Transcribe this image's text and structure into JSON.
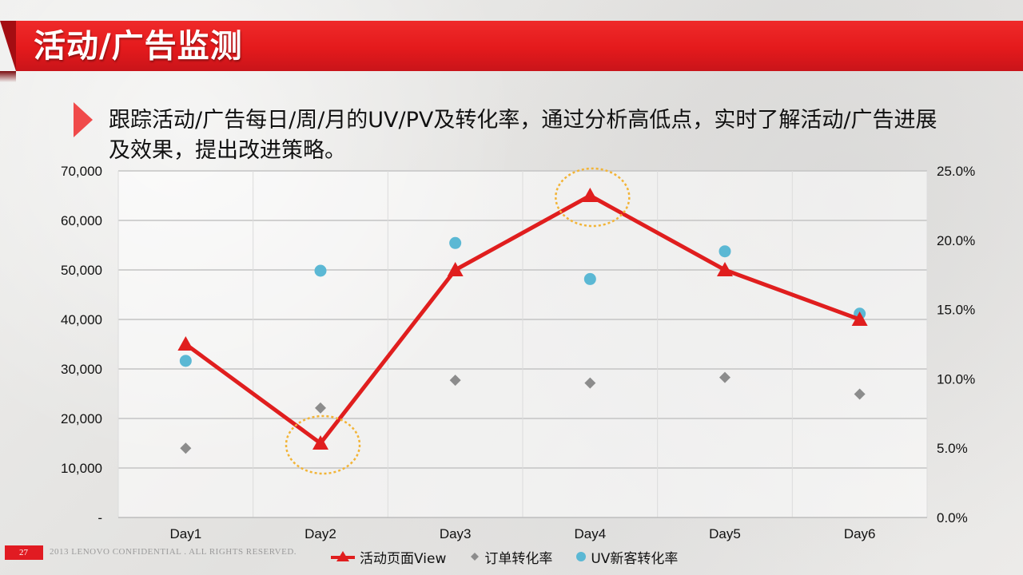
{
  "header": {
    "title": "活动/广告监测"
  },
  "bullet": {
    "text": "跟踪活动/广告每日/周/月的UV/PV及转化率，通过分析高低点，实时了解活动/广告进展及效果，提出改进策略。"
  },
  "footer": {
    "page_number": "27",
    "confidential": "2013 LENOVO CONFIDENTIAL . ALL RIGHTS RESERVED."
  },
  "colors": {
    "brand_red": "#e41a1c",
    "view_series": "#e01e1e",
    "order_series": "#8c8c8c",
    "uv_series": "#5bb8d4",
    "highlight_circle": "#f2b437"
  },
  "chart_data": {
    "type": "line",
    "categories": [
      "Day1",
      "Day2",
      "Day3",
      "Day4",
      "Day5",
      "Day6"
    ],
    "y_left": {
      "range": [
        0,
        70000
      ],
      "ticks": [
        "-",
        "10,000",
        "20,000",
        "30,000",
        "40,000",
        "50,000",
        "60,000",
        "70,000"
      ]
    },
    "y_right": {
      "range": [
        0,
        0.25
      ],
      "ticks": [
        "0.0%",
        "5.0%",
        "10.0%",
        "15.0%",
        "20.0%",
        "25.0%"
      ]
    },
    "grid": true,
    "legend_position": "bottom",
    "series": [
      {
        "name": "活动页面View",
        "type": "line",
        "axis": "left",
        "marker": "triangle",
        "values": [
          35000,
          15000,
          50000,
          65000,
          50000,
          40000
        ]
      },
      {
        "name": "订单转化率",
        "type": "scatter",
        "axis": "right",
        "marker": "diamond",
        "values": [
          0.05,
          0.079,
          0.099,
          0.097,
          0.101,
          0.089
        ]
      },
      {
        "name": "UV新客转化率",
        "type": "scatter",
        "axis": "right",
        "marker": "circle",
        "values": [
          0.113,
          0.178,
          0.198,
          0.172,
          0.192,
          0.147
        ]
      }
    ],
    "highlighted_categories": [
      "Day2",
      "Day4"
    ]
  }
}
